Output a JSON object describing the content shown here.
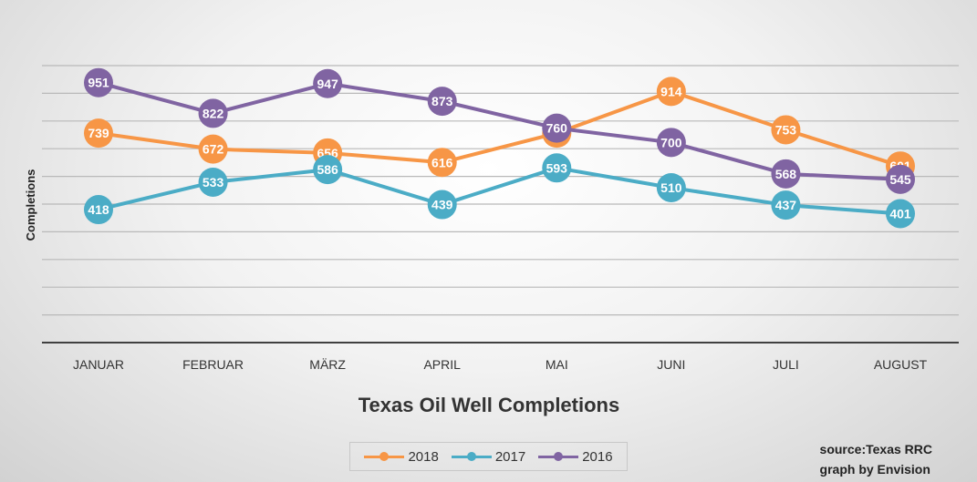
{
  "chart_data": {
    "type": "line",
    "title": "Texas Oil Well Completions",
    "ylabel": "Completions",
    "xlabel": "",
    "categories": [
      "JANUAR",
      "FEBRUAR",
      "MÄRZ",
      "APRIL",
      "MAI",
      "JUNI",
      "JULI",
      "AUGUST"
    ],
    "ylim": [
      0,
      1000
    ],
    "grid": true,
    "legend_position": "bottom",
    "series": [
      {
        "name": "2018",
        "color": "#f79646",
        "values": [
          739,
          672,
          656,
          616,
          739,
          914,
          753,
          601
        ]
      },
      {
        "name": "2017",
        "color": "#4bacc6",
        "values": [
          418,
          533,
          586,
          439,
          593,
          510,
          437,
          401
        ]
      },
      {
        "name": "2016",
        "color": "#8064a2",
        "values": [
          951,
          822,
          947,
          873,
          760,
          700,
          568,
          545
        ]
      }
    ]
  },
  "source": {
    "line1": "source:Texas RRC",
    "line2": "graph by Envision"
  }
}
